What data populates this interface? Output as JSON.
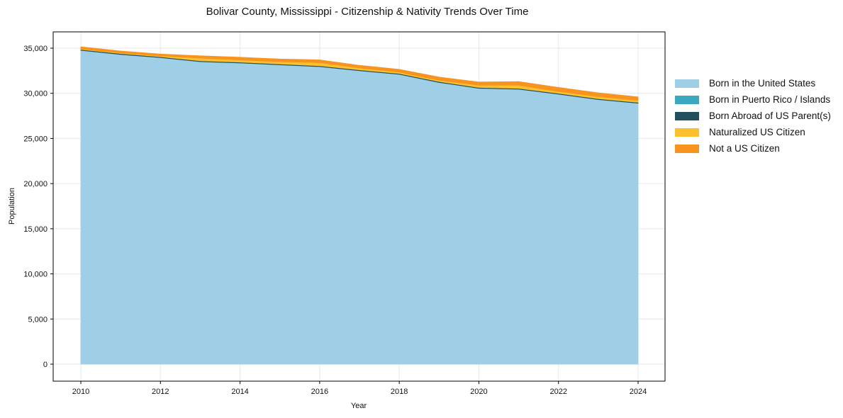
{
  "chart_data": {
    "type": "area",
    "stacked": true,
    "title": "Bolivar County, Mississippi - Citizenship & Nativity Trends Over Time",
    "xlabel": "Year",
    "ylabel": "Population",
    "x": [
      2010,
      2011,
      2012,
      2013,
      2014,
      2015,
      2016,
      2017,
      2018,
      2019,
      2020,
      2021,
      2022,
      2023,
      2024
    ],
    "xticks": [
      "2010",
      "2012",
      "2014",
      "2016",
      "2018",
      "2020",
      "2022",
      "2024"
    ],
    "yticks": [
      "0",
      "5,000",
      "10,000",
      "15,000",
      "20,000",
      "25,000",
      "30,000",
      "35,000"
    ],
    "ylim": [
      -1800,
      36800
    ],
    "grid": true,
    "legend_position": "right",
    "series": [
      {
        "name": "Born in the United States",
        "color": "#9ecfe6",
        "values": [
          34750,
          34300,
          33950,
          33500,
          33350,
          33150,
          32950,
          32500,
          32100,
          31200,
          30550,
          30450,
          29900,
          29300,
          28900
        ]
      },
      {
        "name": "Born in Puerto Rico / Islands",
        "color": "#3ba8c2",
        "values": [
          10,
          10,
          10,
          10,
          10,
          10,
          10,
          10,
          10,
          10,
          10,
          10,
          10,
          10,
          10
        ]
      },
      {
        "name": "Born Abroad of US Parent(s)",
        "color": "#234e5e",
        "values": [
          90,
          90,
          90,
          90,
          90,
          90,
          90,
          90,
          90,
          90,
          90,
          90,
          90,
          90,
          90
        ]
      },
      {
        "name": "Naturalized US Citizen",
        "color": "#fbc02d",
        "values": [
          60,
          80,
          100,
          300,
          250,
          250,
          350,
          200,
          150,
          150,
          250,
          350,
          200,
          250,
          200
        ]
      },
      {
        "name": "Not a US Citizen",
        "color": "#f7931e",
        "values": [
          250,
          200,
          200,
          250,
          300,
          300,
          300,
          300,
          300,
          350,
          350,
          400,
          450,
          400,
          400
        ]
      }
    ]
  },
  "legend": {
    "items": [
      {
        "label": "Born in the United States",
        "color": "#9ecfe6"
      },
      {
        "label": "Born in Puerto Rico / Islands",
        "color": "#3ba8c2"
      },
      {
        "label": "Born Abroad of US Parent(s)",
        "color": "#234e5e"
      },
      {
        "label": "Naturalized US Citizen",
        "color": "#fbc02d"
      },
      {
        "label": "Not a US Citizen",
        "color": "#f7931e"
      }
    ]
  }
}
